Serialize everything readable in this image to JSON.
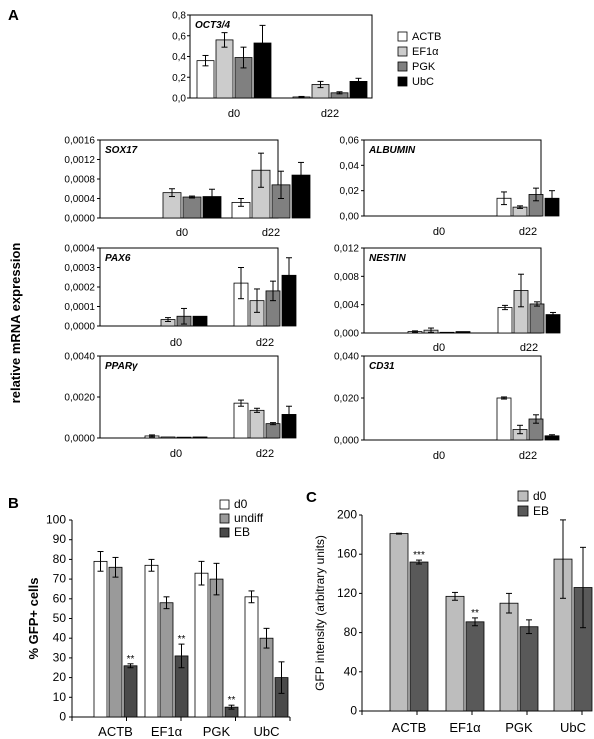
{
  "panels": {
    "a": "A",
    "b": "B",
    "c": "C"
  },
  "a_ylabel": "relative mRNA expression",
  "colors": {
    "ACTB": "#ffffff",
    "EF1a": "#cccccc",
    "PGK": "#808080",
    "UbC": "#000000",
    "d0": "#ffffff",
    "undiff": "#9a9a9a",
    "EB": "#4a4a4a",
    "c_d0": "#bdbdbd",
    "c_EB": "#595959"
  },
  "chart_data": [
    {
      "type": "bar",
      "title": "OCT3/4",
      "categories": [
        "d0",
        "d22"
      ],
      "series": [
        {
          "name": "ACTB",
          "values": [
            0.36,
            0.01
          ],
          "errors": [
            0.05,
            0.005
          ]
        },
        {
          "name": "EF1α",
          "values": [
            0.56,
            0.13
          ],
          "errors": [
            0.07,
            0.03
          ]
        },
        {
          "name": "PGK",
          "values": [
            0.39,
            0.05
          ],
          "errors": [
            0.1,
            0.01
          ]
        },
        {
          "name": "UbC",
          "values": [
            0.53,
            0.16
          ],
          "errors": [
            0.17,
            0.03
          ]
        }
      ],
      "ylim": [
        0,
        0.8
      ],
      "yticks": [
        "0,0",
        "0,2",
        "0,4",
        "0,6",
        "0,8"
      ],
      "legend": [
        "ACTB",
        "EF1α",
        "PGK",
        "UbC"
      ],
      "legend_position": "right"
    },
    {
      "type": "bar",
      "title": "SOX17",
      "categories": [
        "d0",
        "d22"
      ],
      "series": [
        {
          "name": "ACTB",
          "values": [
            0.0,
            0.00032
          ],
          "errors": [
            0.0,
            8e-05
          ]
        },
        {
          "name": "EF1α",
          "values": [
            0.00052,
            0.00098
          ],
          "errors": [
            8e-05,
            0.00035
          ]
        },
        {
          "name": "PGK",
          "values": [
            0.00043,
            0.00068
          ],
          "errors": [
            2e-05,
            0.00028
          ]
        },
        {
          "name": "UbC",
          "values": [
            0.00044,
            0.00088
          ],
          "errors": [
            0.00015,
            0.00026
          ]
        }
      ],
      "ylim": [
        0,
        0.0016
      ],
      "yticks": [
        "0,0000",
        "0,0004",
        "0,0008",
        "0,0012",
        "0,0016"
      ]
    },
    {
      "type": "bar",
      "title": "ALBUMIN",
      "categories": [
        "d0",
        "d22"
      ],
      "series": [
        {
          "name": "ACTB",
          "values": [
            0.0,
            0.014
          ],
          "errors": [
            0.0,
            0.005
          ]
        },
        {
          "name": "EF1α",
          "values": [
            0.0,
            0.007
          ],
          "errors": [
            0.0,
            0.001
          ]
        },
        {
          "name": "PGK",
          "values": [
            0.0,
            0.017
          ],
          "errors": [
            0.0,
            0.005
          ]
        },
        {
          "name": "UbC",
          "values": [
            0.0,
            0.014
          ],
          "errors": [
            0.0,
            0.006
          ]
        }
      ],
      "ylim": [
        0,
        0.06
      ],
      "yticks": [
        "0,00",
        "0,02",
        "0,04",
        "0,06"
      ]
    },
    {
      "type": "bar",
      "title": "PAX6",
      "categories": [
        "d0",
        "d22"
      ],
      "series": [
        {
          "name": "ACTB",
          "values": [
            0.0,
            0.00022
          ],
          "errors": [
            0.0,
            8e-05
          ]
        },
        {
          "name": "EF1α",
          "values": [
            3.3e-05,
            0.00013
          ],
          "errors": [
            1e-05,
            6e-05
          ]
        },
        {
          "name": "PGK",
          "values": [
            5e-05,
            0.00018
          ],
          "errors": [
            4e-05,
            5e-05
          ]
        },
        {
          "name": "UbC",
          "values": [
            5e-05,
            0.00026
          ],
          "errors": [
            0.0,
            9e-05
          ]
        }
      ],
      "ylim": [
        0,
        0.0004
      ],
      "yticks": [
        "0,0000",
        "0,0001",
        "0,0002",
        "0,0003",
        "0,0004"
      ]
    },
    {
      "type": "bar",
      "title": "NESTIN",
      "categories": [
        "d0",
        "d22"
      ],
      "series": [
        {
          "name": "ACTB",
          "values": [
            0.0002,
            0.0036
          ],
          "errors": [
            0.0001,
            0.0003
          ]
        },
        {
          "name": "EF1α",
          "values": [
            0.0004,
            0.006
          ],
          "errors": [
            0.0003,
            0.0023
          ]
        },
        {
          "name": "PGK",
          "values": [
            0.0001,
            0.0041
          ],
          "errors": [
            0.0,
            0.0003
          ]
        },
        {
          "name": "UbC",
          "values": [
            0.0002,
            0.0026
          ],
          "errors": [
            0.0,
            0.0003
          ]
        }
      ],
      "ylim": [
        0,
        0.012
      ],
      "yticks": [
        "0,000",
        "0,004",
        "0,008",
        "0,012"
      ]
    },
    {
      "type": "bar",
      "title": "PPARγ",
      "categories": [
        "d0",
        "d22"
      ],
      "series": [
        {
          "name": "ACTB",
          "values": [
            0.0001,
            0.0017
          ],
          "errors": [
            5e-05,
            0.00015
          ]
        },
        {
          "name": "EF1α",
          "values": [
            5e-05,
            0.00135
          ],
          "errors": [
            0.0,
            0.0001
          ]
        },
        {
          "name": "PGK",
          "values": [
            4e-05,
            0.0007
          ],
          "errors": [
            0.0,
            5e-05
          ]
        },
        {
          "name": "UbC",
          "values": [
            5e-05,
            0.00115
          ],
          "errors": [
            0.0,
            0.0004
          ]
        }
      ],
      "ylim": [
        0,
        0.004
      ],
      "yticks": [
        "0,0000",
        "0,0020",
        "0,0040"
      ]
    },
    {
      "type": "bar",
      "title": "CD31",
      "categories": [
        "d0",
        "d22"
      ],
      "series": [
        {
          "name": "ACTB",
          "values": [
            0.0,
            0.02
          ],
          "errors": [
            0.0,
            0.0005
          ]
        },
        {
          "name": "EF1α",
          "values": [
            0.0,
            0.005
          ],
          "errors": [
            0.0,
            0.002
          ]
        },
        {
          "name": "PGK",
          "values": [
            0.0,
            0.01
          ],
          "errors": [
            0.0,
            0.002
          ]
        },
        {
          "name": "UbC",
          "values": [
            0.0,
            0.002
          ],
          "errors": [
            0.0,
            0.0005
          ]
        }
      ],
      "ylim": [
        0,
        0.04
      ],
      "yticks": [
        "0,000",
        "0,020",
        "0,040"
      ]
    },
    {
      "type": "bar",
      "categories": [
        "ACTB",
        "EF1α",
        "PGK",
        "UbC"
      ],
      "series": [
        {
          "name": "d0",
          "values": [
            79,
            77,
            73,
            61
          ],
          "errors": [
            5,
            3,
            6,
            3
          ]
        },
        {
          "name": "undiff",
          "values": [
            76,
            58,
            70,
            40
          ],
          "errors": [
            5,
            3,
            8,
            5
          ]
        },
        {
          "name": "EB",
          "values": [
            26,
            31,
            5,
            20
          ],
          "errors": [
            1,
            6,
            1,
            8
          ]
        }
      ],
      "annotations": [
        "**",
        "**",
        "**"
      ],
      "ylabel": "% GFP+ cells",
      "ylim": [
        0,
        100
      ],
      "yticks": [
        "0",
        "10",
        "20",
        "30",
        "40",
        "50",
        "60",
        "70",
        "80",
        "90",
        "100"
      ],
      "legend": [
        "d0",
        "undiff",
        "EB"
      ],
      "legend_position": "top-right"
    },
    {
      "type": "bar",
      "categories": [
        "ACTB",
        "EF1α",
        "PGK",
        "UbC"
      ],
      "series": [
        {
          "name": "d0",
          "values": [
            181,
            117,
            110,
            155
          ],
          "errors": [
            0.5,
            4,
            10,
            40
          ]
        },
        {
          "name": "EB",
          "values": [
            152,
            91,
            86,
            126
          ],
          "errors": [
            2,
            4,
            7,
            41
          ]
        }
      ],
      "annotations": [
        "***",
        "**"
      ],
      "ylabel": "GFP intensity (arbitrary units)",
      "ylim": [
        0,
        200
      ],
      "yticks": [
        "0",
        "40",
        "80",
        "120",
        "160",
        "200"
      ],
      "legend": [
        "d0",
        "EB"
      ],
      "legend_position": "top-right"
    }
  ]
}
